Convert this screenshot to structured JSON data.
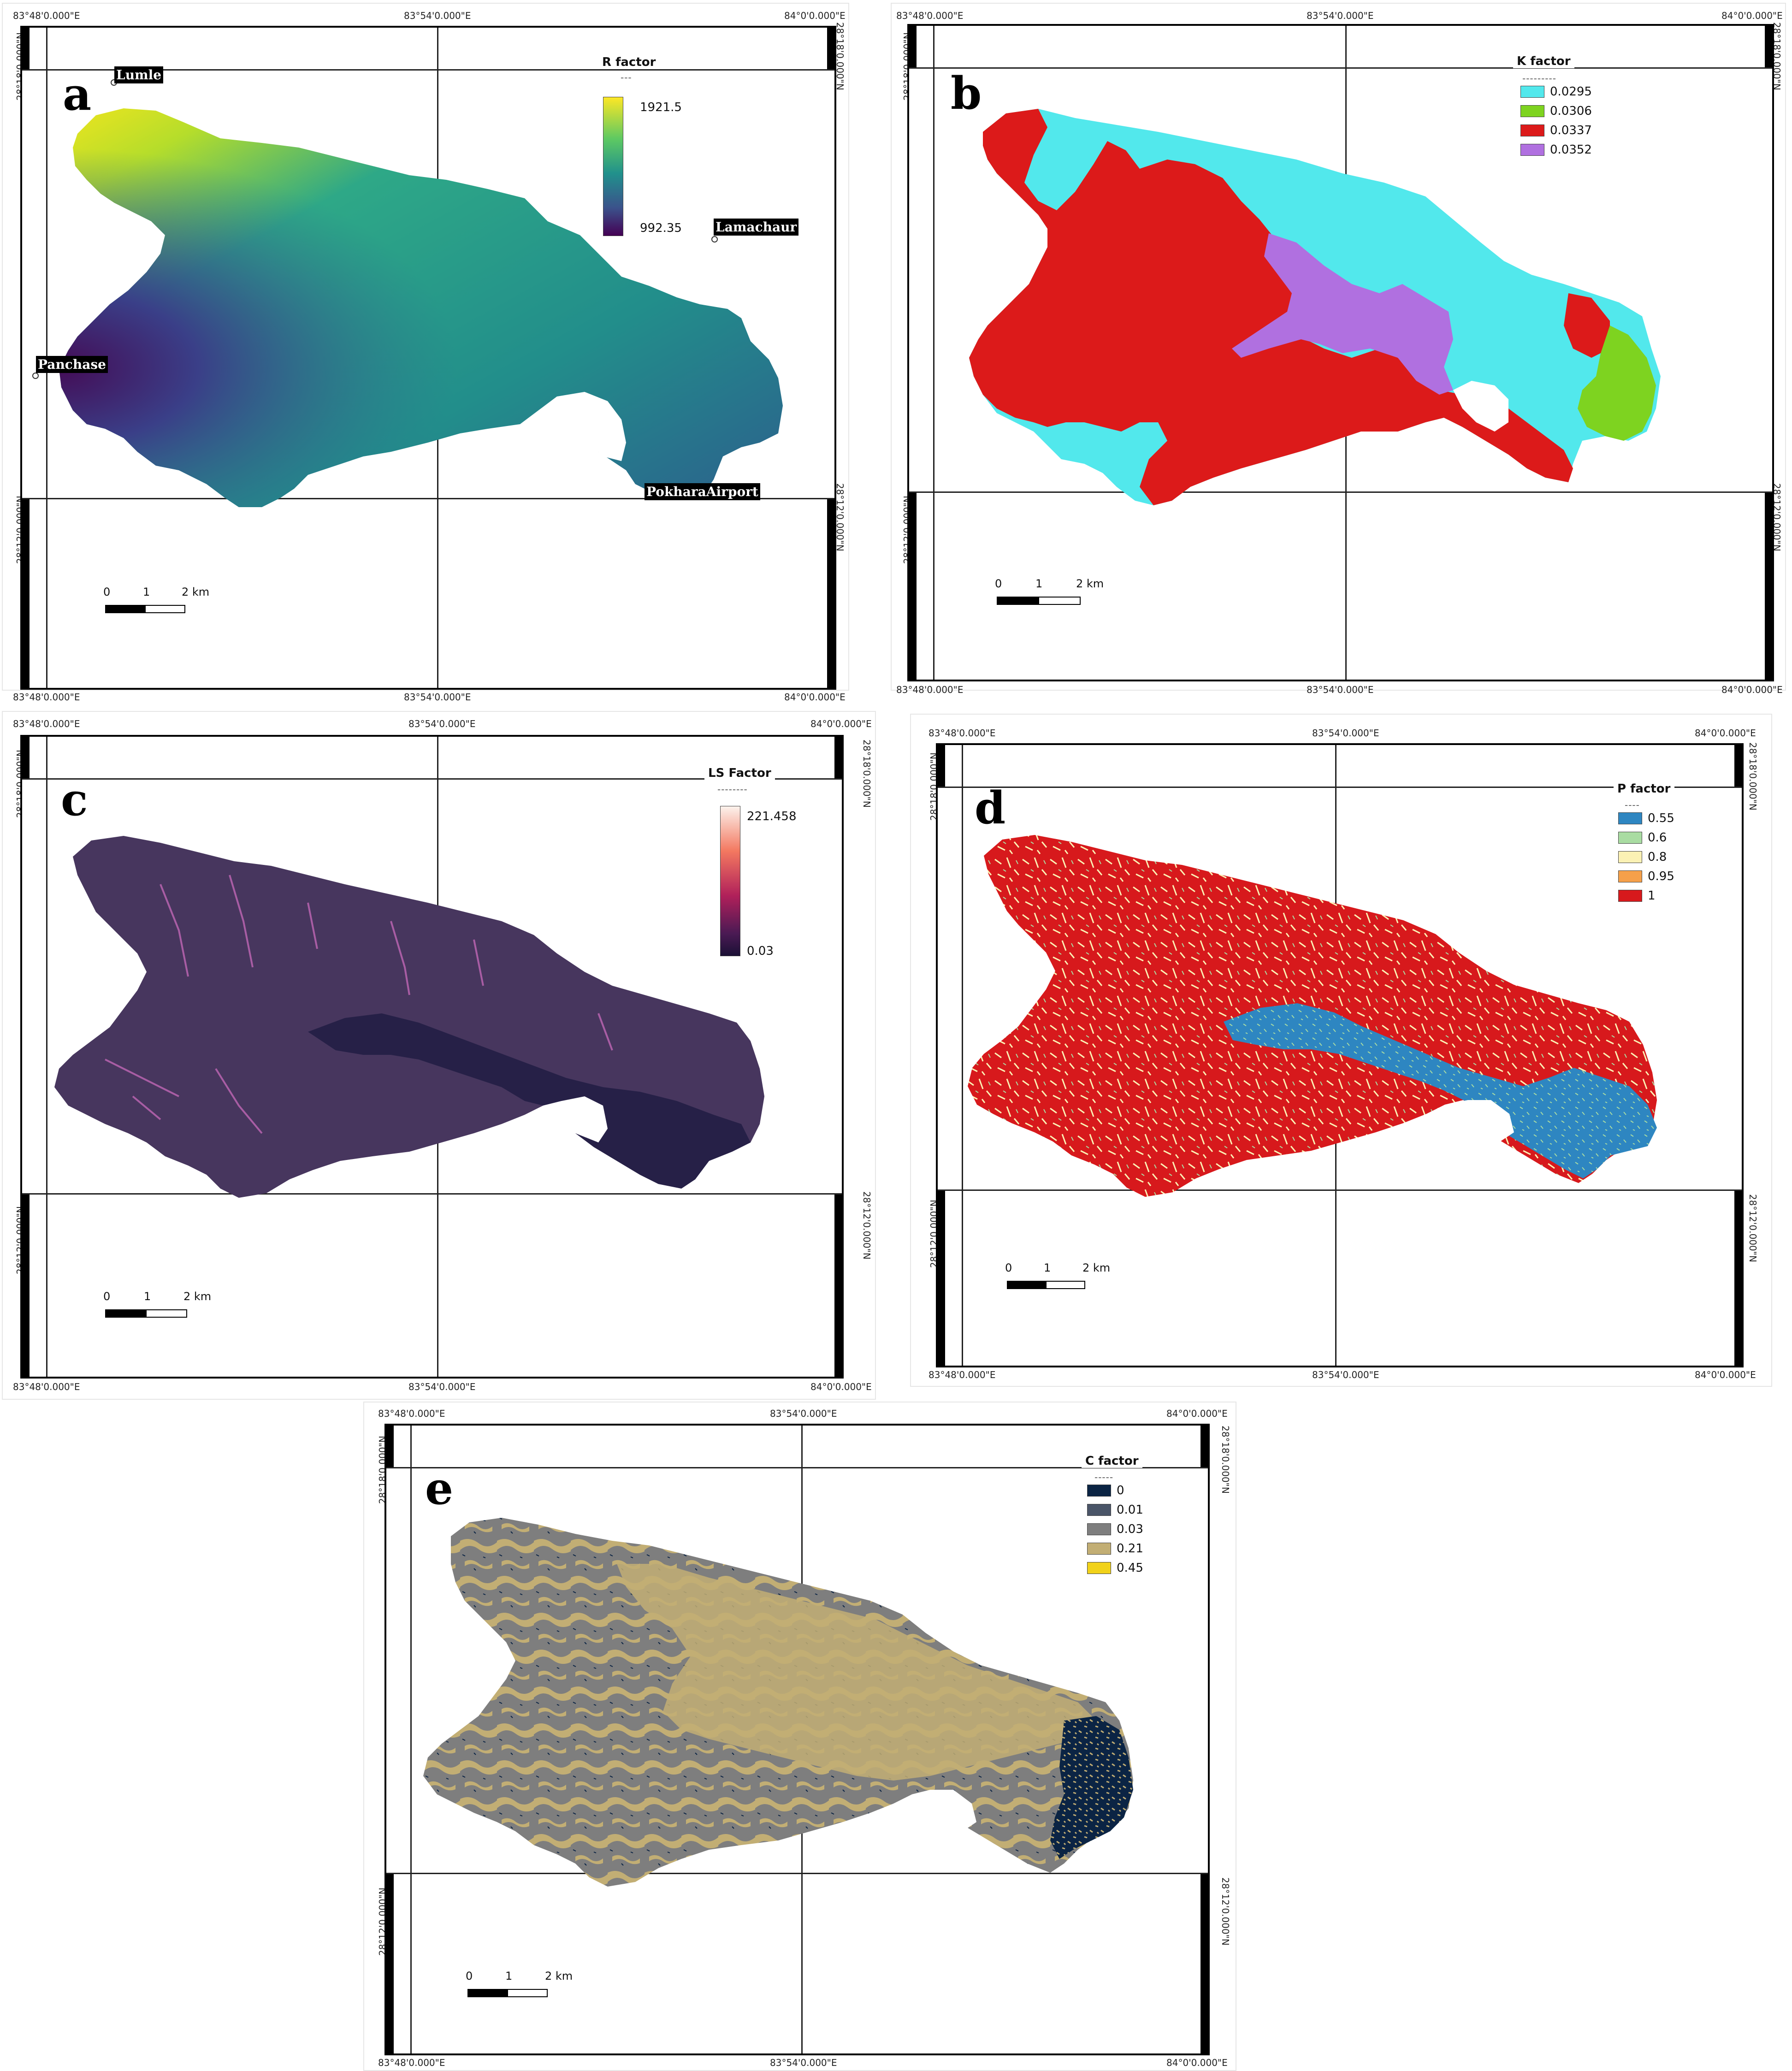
{
  "coords": {
    "lon_w": "83°48'0.000\"E",
    "lon_m": "83°54'0.000\"E",
    "lon_e": "84°0'0.000\"E",
    "lat_n": "28°18'0.000\"N",
    "lat_s": "28°12'0.000\"N"
  },
  "scale": {
    "t0": "0",
    "t1": "1",
    "t2": "2 km"
  },
  "panels": {
    "a": {
      "letter": "a",
      "legend_title": "R factor",
      "legend_dash": "---",
      "max": "1921.5",
      "min": "992.35",
      "places": [
        "Lumle",
        "Lamachaur",
        "Panchase",
        "PokharaAirport"
      ]
    },
    "b": {
      "letter": "b",
      "legend_title": "K factor",
      "legend_dash": "---------",
      "items": [
        {
          "label": "0.0295",
          "color": "#52e8ec"
        },
        {
          "label": "0.0306",
          "color": "#7ed320"
        },
        {
          "label": "0.0337",
          "color": "#dc1a1a"
        },
        {
          "label": "0.0352",
          "color": "#b070e0"
        }
      ]
    },
    "c": {
      "letter": "c",
      "legend_title": "LS Factor",
      "legend_dash": "--------",
      "max": "221.458",
      "min": "0.03"
    },
    "d": {
      "letter": "d",
      "legend_title": "P factor",
      "legend_dash": "----",
      "items": [
        {
          "label": "0.55",
          "color": "#2e86c1"
        },
        {
          "label": "0.6",
          "color": "#a9dca2"
        },
        {
          "label": "0.8",
          "color": "#fbf1b4"
        },
        {
          "label": "0.95",
          "color": "#f5a04a"
        },
        {
          "label": "1",
          "color": "#d7191c"
        }
      ]
    },
    "e": {
      "letter": "e",
      "legend_title": "C factor",
      "legend_dash": "-----",
      "items": [
        {
          "label": "0",
          "color": "#0b2444"
        },
        {
          "label": "0.01",
          "color": "#4a5568"
        },
        {
          "label": "0.03",
          "color": "#7e7e7e"
        },
        {
          "label": "0.21",
          "color": "#c2ae74"
        },
        {
          "label": "0.45",
          "color": "#f1d21a"
        }
      ]
    }
  }
}
